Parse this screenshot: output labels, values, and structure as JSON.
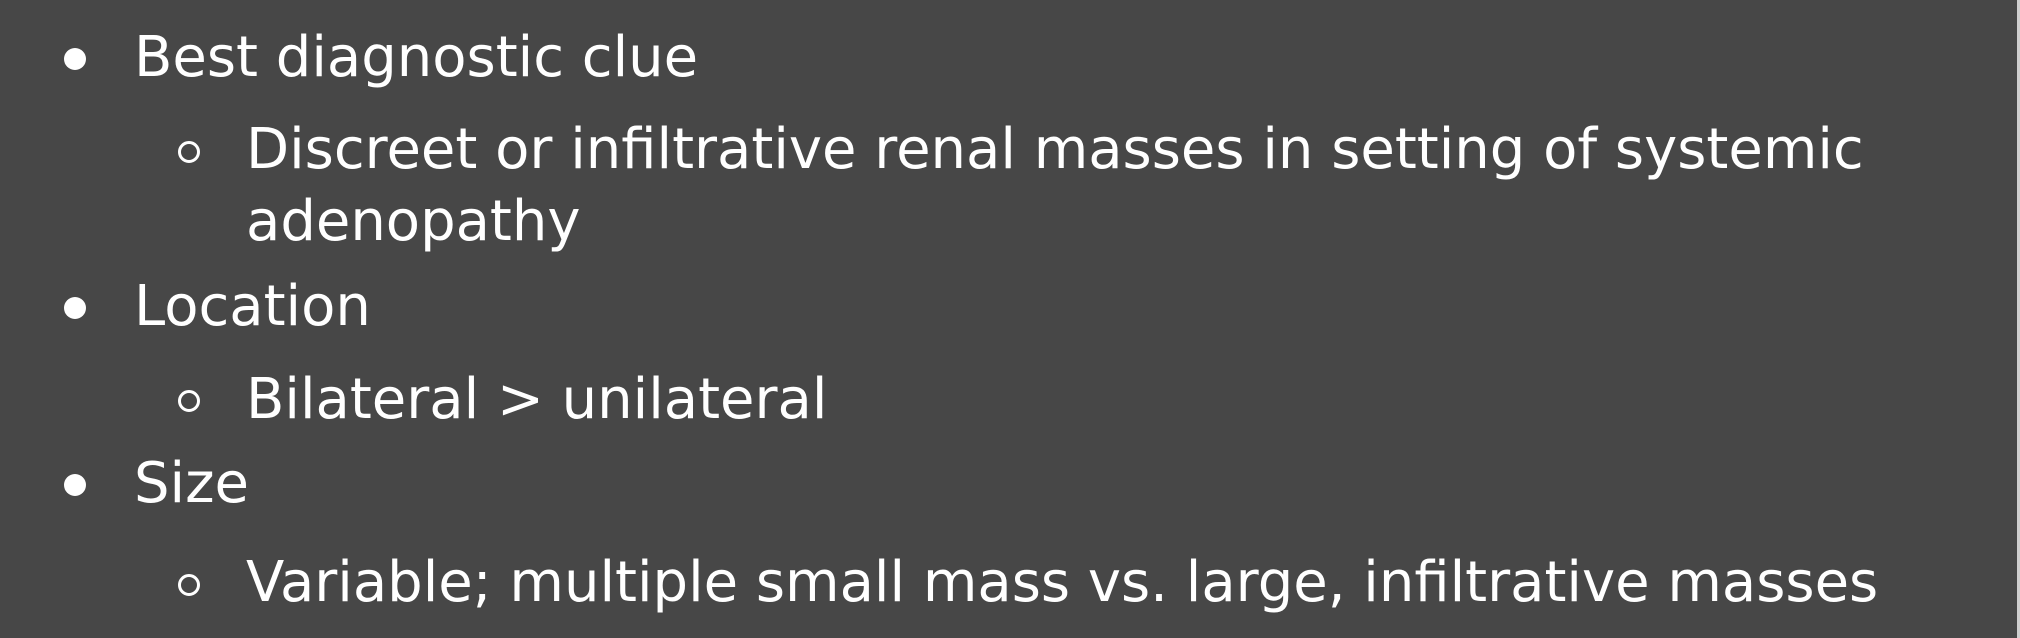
{
  "slide": {
    "items": [
      {
        "text": "Best diagnostic clue",
        "sub": [
          {
            "line1": "Discreet or infiltrative renal masses in setting of systemic",
            "line2": "adenopathy"
          }
        ]
      },
      {
        "text": "Location",
        "sub": [
          {
            "line1": "Bilateral > unilateral"
          }
        ]
      },
      {
        "text": "Size",
        "sub": [
          {
            "line1": "Variable; multiple small mass vs. large, infiltrative masses"
          }
        ]
      }
    ]
  }
}
